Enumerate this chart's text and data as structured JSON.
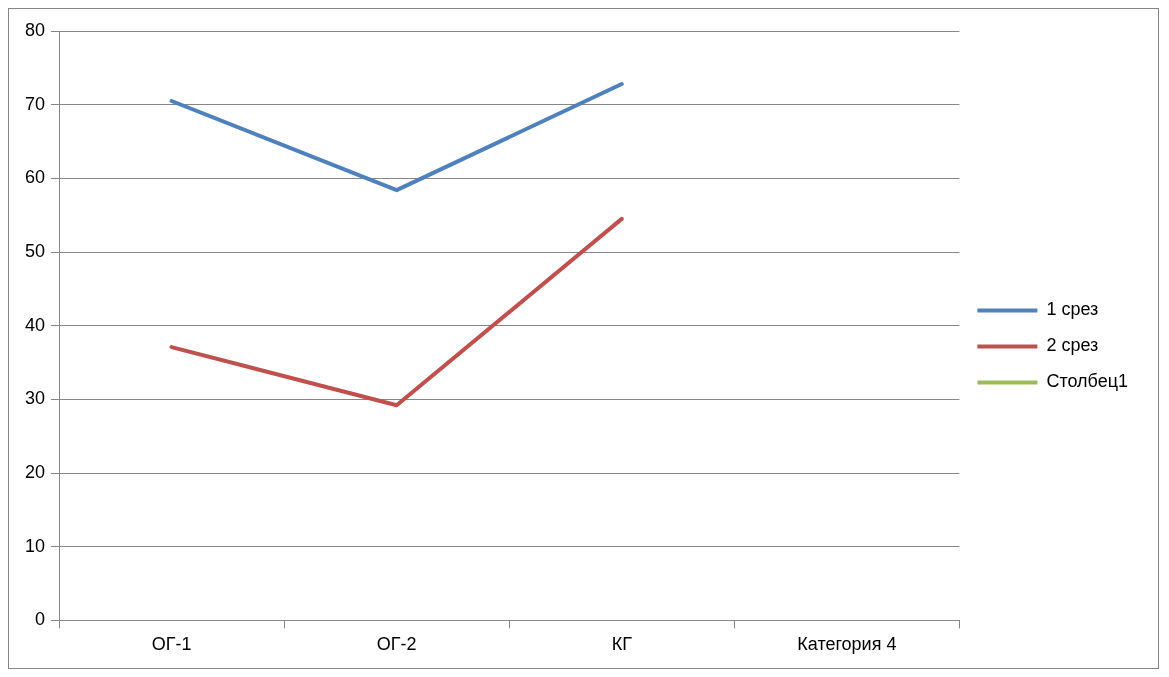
{
  "chart_data": {
    "type": "line",
    "categories": [
      "ОГ-1",
      "ОГ-2",
      "КГ",
      "Категория 4"
    ],
    "series": [
      {
        "name": "1 срез",
        "color": "#4f81bd",
        "values": [
          70.5,
          58.4,
          72.8,
          null
        ]
      },
      {
        "name": "2 срез",
        "color": "#c0504d",
        "values": [
          37.1,
          29.2,
          54.5,
          null
        ]
      },
      {
        "name": "Столбец1",
        "color": "#9bbb59",
        "values": [
          null,
          null,
          null,
          null
        ]
      }
    ],
    "ylim": [
      0,
      80
    ],
    "yticks": [
      0,
      10,
      20,
      30,
      40,
      50,
      60,
      70,
      80
    ],
    "grid": "y",
    "legend": "right",
    "marker": "none",
    "line_style": "solid"
  }
}
